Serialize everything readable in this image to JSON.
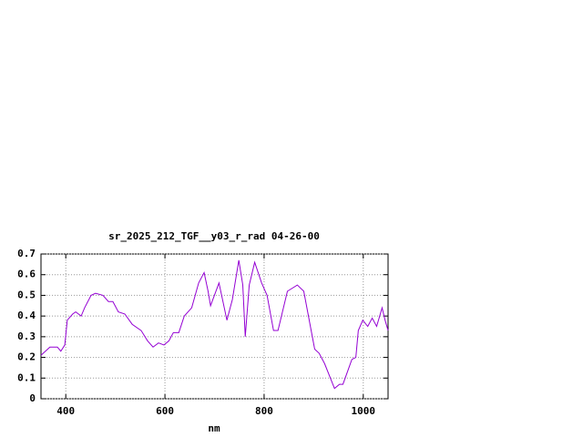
{
  "chart_data": {
    "type": "line",
    "title": "sr_2025_212_TGF__y03_r_rad 04-26-00",
    "x_label": "nm",
    "x": [
      350,
      368,
      383,
      390,
      398,
      403,
      414,
      420,
      431,
      438,
      451,
      460,
      475,
      486,
      495,
      506,
      519,
      534,
      552,
      565,
      576,
      587,
      598,
      608,
      617,
      628,
      639,
      654,
      668,
      679,
      687,
      692,
      709,
      725,
      736,
      749,
      757,
      762,
      770,
      781,
      795,
      806,
      819,
      828,
      847,
      867,
      880,
      902,
      911,
      922,
      942,
      952,
      959,
      977,
      985,
      990,
      999,
      1009,
      1018,
      1027,
      1038,
      1044,
      1050
    ],
    "series": [
      {
        "name": "sr_2025_212_TGF__y03_r_rad",
        "color": "#9400d3",
        "values": [
          0.21,
          0.25,
          0.25,
          0.23,
          0.26,
          0.38,
          0.41,
          0.42,
          0.4,
          0.44,
          0.5,
          0.51,
          0.5,
          0.47,
          0.47,
          0.42,
          0.41,
          0.36,
          0.33,
          0.28,
          0.25,
          0.27,
          0.26,
          0.28,
          0.32,
          0.32,
          0.4,
          0.44,
          0.56,
          0.61,
          0.52,
          0.45,
          0.56,
          0.38,
          0.48,
          0.67,
          0.55,
          0.3,
          0.55,
          0.66,
          0.56,
          0.5,
          0.33,
          0.33,
          0.52,
          0.55,
          0.52,
          0.24,
          0.22,
          0.17,
          0.05,
          0.07,
          0.07,
          0.19,
          0.2,
          0.33,
          0.38,
          0.35,
          0.39,
          0.35,
          0.44,
          0.38,
          0.33
        ]
      }
    ],
    "xlim": [
      350,
      1050
    ],
    "xticks": [
      400,
      600,
      800,
      1000
    ],
    "ylim": [
      0,
      0.7
    ],
    "yticks": [
      0,
      0.1,
      0.2,
      0.3,
      0.4,
      0.5,
      0.6,
      0.7
    ],
    "grid": true
  }
}
